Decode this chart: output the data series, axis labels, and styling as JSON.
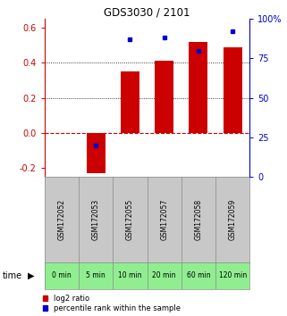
{
  "title": "GDS3030 / 2101",
  "samples": [
    "GSM172052",
    "GSM172053",
    "GSM172055",
    "GSM172057",
    "GSM172058",
    "GSM172059"
  ],
  "time_labels": [
    "0 min",
    "5 min",
    "10 min",
    "20 min",
    "60 min",
    "120 min"
  ],
  "log2_ratio": [
    0.0,
    -0.23,
    0.35,
    0.41,
    0.52,
    0.49
  ],
  "percentile_rank": [
    null,
    20,
    87,
    88,
    80,
    92
  ],
  "ylim_min": -0.25,
  "ylim_max": 0.65,
  "yticks_left": [
    -0.2,
    0.0,
    0.2,
    0.4,
    0.6
  ],
  "yticks_right_pct": [
    0,
    25,
    50,
    75,
    100
  ],
  "bar_color": "#cc0000",
  "dot_color": "#0000cc",
  "zero_line_color": "#cc0000",
  "grid_color": "#000000",
  "bg_color": "#ffffff",
  "gray_label_bg": "#c8c8c8",
  "green_time_bg": "#90ee90",
  "title_color": "#000000",
  "left_axis_color": "#cc0000",
  "right_axis_color": "#0000cc",
  "legend_red_label": "log2 ratio",
  "legend_blue_label": "percentile rank within the sample",
  "bar_width": 0.55
}
